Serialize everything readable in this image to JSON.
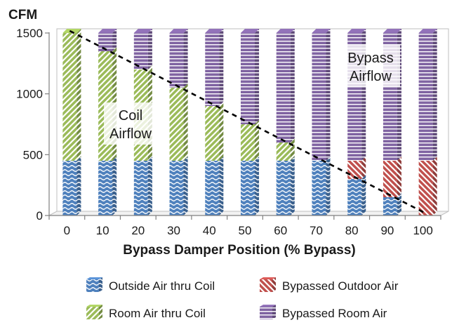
{
  "chart_data": {
    "type": "bar",
    "stacked": true,
    "ylabel": "CFM",
    "xlabel": "Bypass Damper Position (% Bypass)",
    "ylim": [
      0,
      1500
    ],
    "yticks": [
      0,
      500,
      1000,
      1500
    ],
    "categories": [
      "0",
      "10",
      "20",
      "30",
      "40",
      "50",
      "60",
      "70",
      "80",
      "90",
      "100"
    ],
    "series": [
      {
        "name": "Outside Air thru Coil",
        "color": "#4f81bd",
        "pattern": "wave",
        "values": [
          450,
          450,
          450,
          450,
          450,
          450,
          450,
          450,
          300,
          150,
          0
        ]
      },
      {
        "name": "Room Air thru Coil",
        "color": "#9bbb59",
        "pattern": "diagonal-up",
        "values": [
          1050,
          900,
          750,
          600,
          450,
          300,
          150,
          0,
          0,
          0,
          0
        ]
      },
      {
        "name": "Bypassed Outdoor Air",
        "color": "#c0504d",
        "pattern": "diagonal-down",
        "values": [
          0,
          0,
          0,
          0,
          0,
          0,
          0,
          0,
          150,
          300,
          450
        ]
      },
      {
        "name": "Bypassed Room Air",
        "color": "#8064a2",
        "pattern": "horizontal",
        "values": [
          0,
          150,
          300,
          450,
          600,
          750,
          900,
          1050,
          1050,
          1050,
          1050
        ]
      }
    ],
    "trend_line": {
      "style": "dashed",
      "from": [
        0,
        1500
      ],
      "to": [
        100,
        0
      ]
    },
    "annotations": [
      {
        "text": "Coil\nAirflow"
      },
      {
        "text": "Bypass\nAirflow"
      }
    ],
    "legend_position": "bottom"
  }
}
